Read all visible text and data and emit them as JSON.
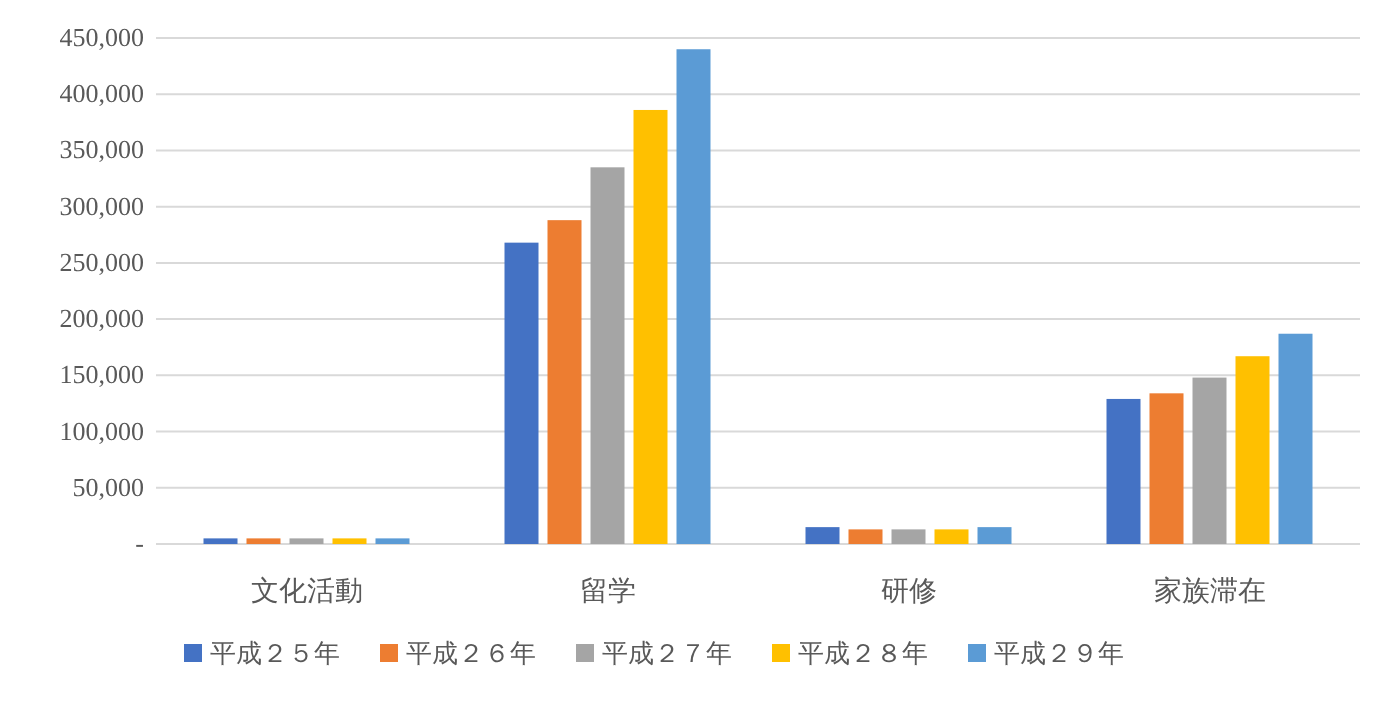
{
  "chart_data": {
    "type": "bar",
    "categories": [
      "文化活動",
      "留学",
      "研修",
      "家族滞在"
    ],
    "series": [
      {
        "name": "平成２５年",
        "color": "#4472c4",
        "values": [
          5000,
          268000,
          15000,
          129000
        ]
      },
      {
        "name": "平成２６年",
        "color": "#ed7d31",
        "values": [
          5000,
          288000,
          13000,
          134000
        ]
      },
      {
        "name": "平成２７年",
        "color": "#a5a5a5",
        "values": [
          5000,
          335000,
          13000,
          148000
        ]
      },
      {
        "name": "平成２８年",
        "color": "#ffc000",
        "values": [
          5000,
          386000,
          13000,
          167000
        ]
      },
      {
        "name": "平成２９年",
        "color": "#5b9bd5",
        "values": [
          5000,
          440000,
          15000,
          187000
        ]
      }
    ],
    "ylim": [
      0,
      450000
    ],
    "yticks": [
      {
        "value": 0,
        "label": "-"
      },
      {
        "value": 50000,
        "label": "50,000"
      },
      {
        "value": 100000,
        "label": "100,000"
      },
      {
        "value": 150000,
        "label": "150,000"
      },
      {
        "value": 200000,
        "label": "200,000"
      },
      {
        "value": 250000,
        "label": "250,000"
      },
      {
        "value": 300000,
        "label": "300,000"
      },
      {
        "value": 350000,
        "label": "350,000"
      },
      {
        "value": 400000,
        "label": "400,000"
      },
      {
        "value": 450000,
        "label": "450,000"
      }
    ],
    "grid": "y",
    "legend": "bottom"
  }
}
